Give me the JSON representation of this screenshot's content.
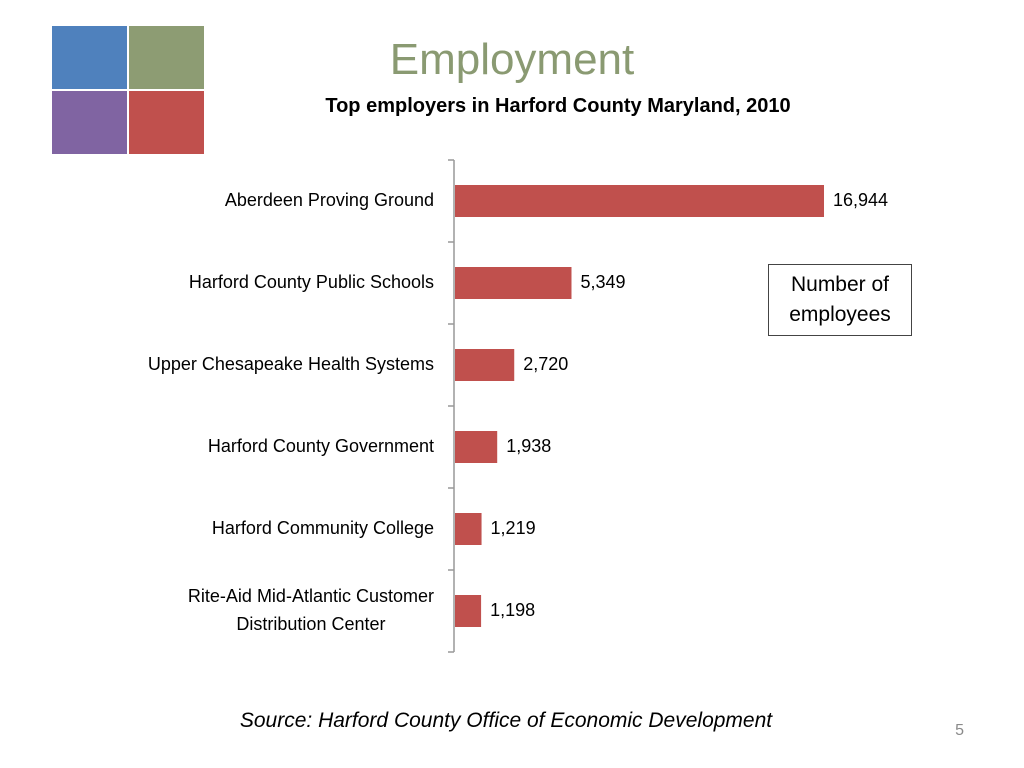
{
  "slide": {
    "title": "Employment",
    "page_number": "5",
    "source": "Source: Harford County Office of Economic Development",
    "logo_colors": [
      "#4f81bd",
      "#8d9c73",
      "#8064a2",
      "#c0504d"
    ]
  },
  "colors": {
    "bar": "#c0504d",
    "axis": "#999999",
    "title": "#8a9a72"
  },
  "chart_data": {
    "type": "bar",
    "orientation": "horizontal",
    "title": "Top employers in Harford County Maryland, 2010",
    "annotation": "Number of employees",
    "categories": [
      "Aberdeen Proving Ground",
      "Harford County Public Schools",
      "Upper Chesapeake Health Systems",
      "Harford County Government",
      "Harford Community College",
      "Rite-Aid Mid-Atlantic Customer Distribution Center"
    ],
    "values": [
      16944,
      5349,
      2720,
      1938,
      1219,
      1198
    ],
    "value_labels": [
      "16,944",
      "5,349",
      "2,720",
      "1,938",
      "1,219",
      "1,198"
    ],
    "xlim": [
      0,
      18000
    ],
    "grid": false
  }
}
